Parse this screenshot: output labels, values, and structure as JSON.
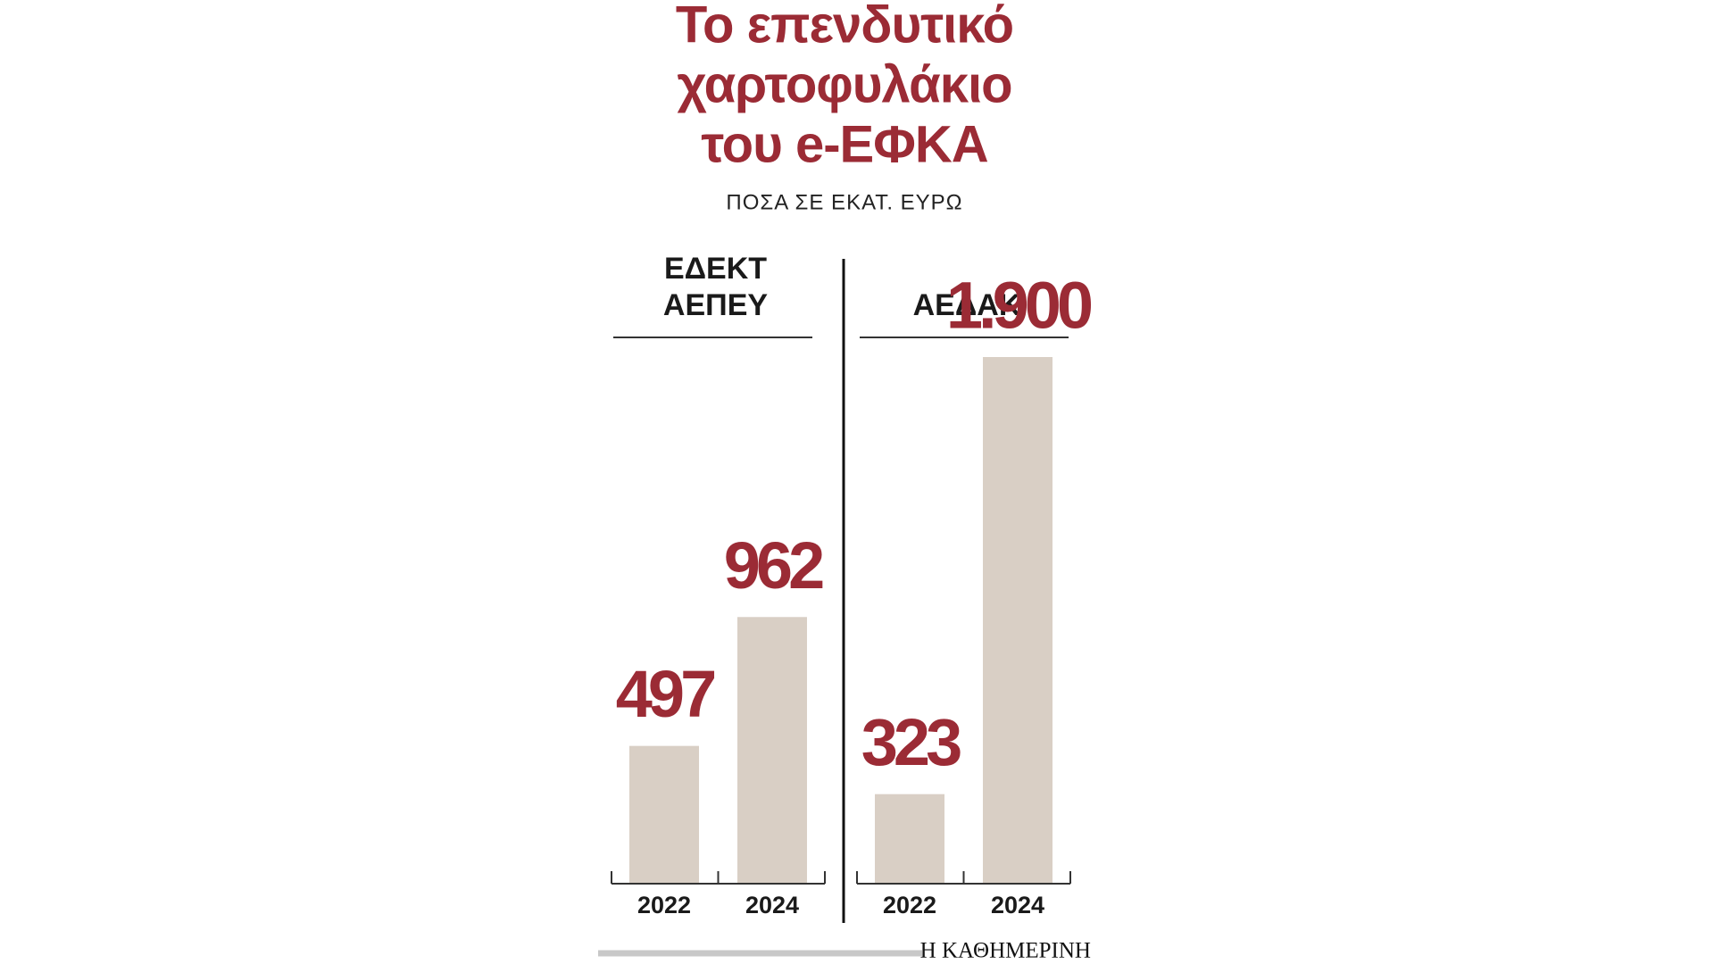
{
  "title": [
    "Το επενδυτικό",
    "χαρτοφυλάκιο",
    "του e-ΕΦΚΑ"
  ],
  "subtitle": "ΠΟΣΑ ΣΕ ΕΚΑΤ. ΕΥΡΩ",
  "source": "Η ΚΑΘΗΜΕΡΙΝΗ",
  "chart_data": [
    {
      "type": "bar",
      "title": [
        "ΕΔΕΚΤ",
        "ΑΕΠΕΥ"
      ],
      "categories": [
        "2022",
        "2024"
      ],
      "values": [
        497,
        962
      ],
      "color": "#d9cfc5",
      "label_color": "#9b2b35",
      "ylim": [
        0,
        1900
      ]
    },
    {
      "type": "bar",
      "title": [
        "ΑΕΔΑΚ"
      ],
      "categories": [
        "2022",
        "2024"
      ],
      "values": [
        323,
        1900
      ],
      "value_labels": [
        "323",
        "1.900"
      ],
      "color": "#d9cfc5",
      "label_color": "#9b2b35",
      "ylim": [
        0,
        1900
      ]
    }
  ]
}
